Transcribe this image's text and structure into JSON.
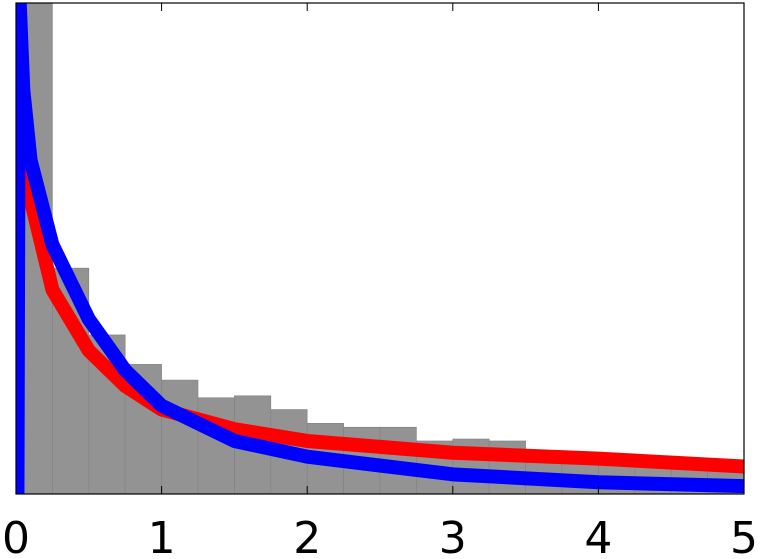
{
  "chart_data": {
    "type": "histogram",
    "bins": [
      0,
      0.25,
      0.5,
      0.75,
      1,
      1.25,
      1.5,
      1.75,
      2,
      2.25,
      2.5,
      2.75,
      3,
      3.25,
      3.5,
      3.75,
      4,
      4.25,
      4.5,
      4.75,
      5
    ],
    "values": [
      2.6,
      1.15,
      0.81,
      0.66,
      0.58,
      0.49,
      0.5,
      0.43,
      0.36,
      0.34,
      0.34,
      0.27,
      0.28,
      0.27,
      0.2,
      0.19,
      0.18,
      0.16,
      0.15,
      0.13
    ],
    "color": "#939393",
    "series": [
      {
        "color": "#ff0000",
        "x": [
          0.03,
          0.1,
          0.25,
          0.5,
          0.75,
          1,
          1.5,
          2,
          3,
          4,
          5
        ],
        "values": [
          1.88,
          1.5,
          1.04,
          0.73,
          0.55,
          0.43,
          0.33,
          0.27,
          0.21,
          0.18,
          0.14
        ]
      },
      {
        "color": "#0000ff",
        "x": [
          0.01,
          0.02,
          0.05,
          0.1,
          0.25,
          0.5,
          0.75,
          1,
          1.5,
          2,
          3,
          4,
          5
        ],
        "values": [
          0,
          2.6,
          2.06,
          1.7,
          1.27,
          0.89,
          0.63,
          0.45,
          0.27,
          0.19,
          0.1,
          0.06,
          0.04
        ]
      }
    ],
    "xlim": [
      0,
      5
    ],
    "ylim": [
      0,
      2.5
    ],
    "xticks": [
      0,
      1,
      2,
      3,
      4,
      5
    ]
  }
}
